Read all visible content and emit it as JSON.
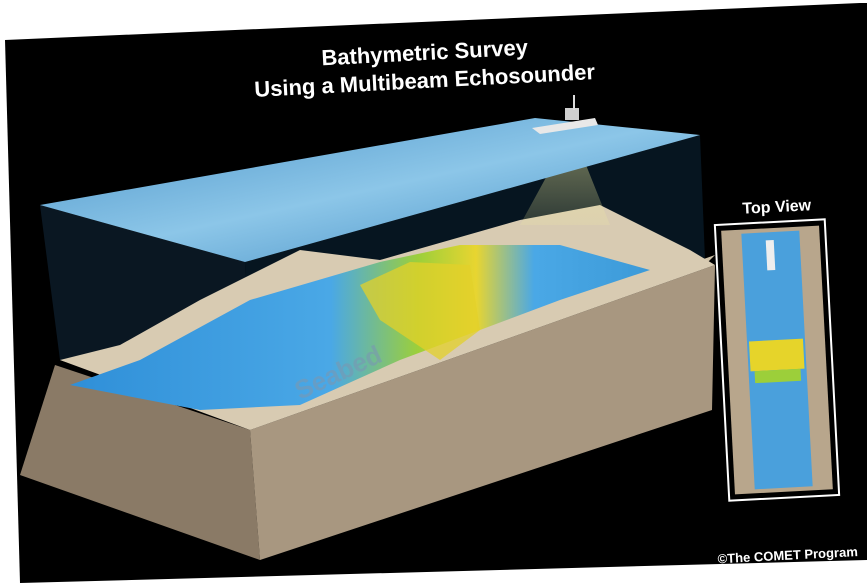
{
  "title": {
    "line1": "Bathymetric Survey",
    "line2": "Using a Multibeam Echosounder"
  },
  "labels": {
    "seabed": "Seabed",
    "top_view": "Top View"
  },
  "credit": "©The COMET Program"
}
